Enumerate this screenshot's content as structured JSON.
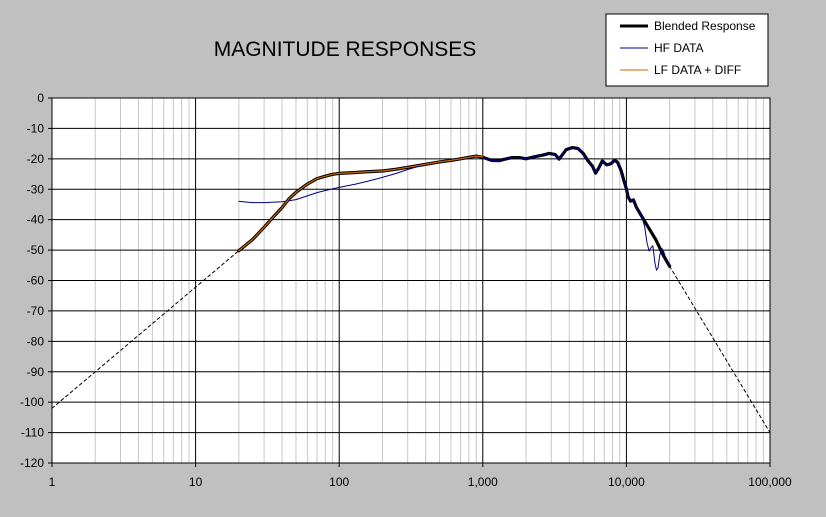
{
  "chart_data": {
    "type": "line",
    "title": "MAGNITUDE RESPONSES",
    "xlabel": "",
    "ylabel": "",
    "x_scale": "log",
    "xlim": [
      1,
      100000
    ],
    "ylim": [
      -120,
      0
    ],
    "grid": true,
    "legend_position": "top-right",
    "x_tick_labels": [
      "1",
      "10",
      "100",
      "1,000",
      "10,000",
      "100,000"
    ],
    "x_tick_values": [
      1,
      10,
      100,
      1000,
      10000,
      100000
    ],
    "y_tick_labels": [
      "0",
      "-10",
      "-20",
      "-30",
      "-40",
      "-50",
      "-60",
      "-70",
      "-80",
      "-90",
      "-100",
      "-110",
      "-120"
    ],
    "y_tick_values": [
      0,
      -10,
      -20,
      -30,
      -40,
      -50,
      -60,
      -70,
      -80,
      -90,
      -100,
      -110,
      -120
    ],
    "series": [
      {
        "name": "Blended Response",
        "color": "#000000",
        "points": [
          [
            20,
            -50.2
          ],
          [
            25,
            -46.5
          ],
          [
            30,
            -42.5
          ],
          [
            35,
            -39
          ],
          [
            40,
            -36
          ],
          [
            45,
            -33
          ],
          [
            50,
            -31
          ],
          [
            60,
            -28.3
          ],
          [
            70,
            -26.5
          ],
          [
            80,
            -25.7
          ],
          [
            90,
            -25.1
          ],
          [
            100,
            -24.8
          ],
          [
            130,
            -24.5
          ],
          [
            150,
            -24.3
          ],
          [
            200,
            -24
          ],
          [
            250,
            -23.4
          ],
          [
            300,
            -22.8
          ],
          [
            400,
            -21.8
          ],
          [
            500,
            -21
          ],
          [
            600,
            -20.5
          ],
          [
            700,
            -20
          ],
          [
            800,
            -19.5
          ],
          [
            900,
            -19.1
          ],
          [
            1000,
            -19.5
          ],
          [
            1150,
            -20.5
          ],
          [
            1300,
            -20.6
          ],
          [
            1400,
            -20.2
          ],
          [
            1600,
            -19.6
          ],
          [
            1800,
            -19.6
          ],
          [
            2000,
            -20
          ],
          [
            2300,
            -19.3
          ],
          [
            2600,
            -18.8
          ],
          [
            2900,
            -18.2
          ],
          [
            3200,
            -18.6
          ],
          [
            3400,
            -20.1
          ],
          [
            3600,
            -18.5
          ],
          [
            3800,
            -17
          ],
          [
            4200,
            -16.3
          ],
          [
            4600,
            -16.6
          ],
          [
            5000,
            -18.2
          ],
          [
            5400,
            -20.6
          ],
          [
            5800,
            -22.4
          ],
          [
            6100,
            -24.7
          ],
          [
            6400,
            -23.1
          ],
          [
            6800,
            -20.7
          ],
          [
            7300,
            -22
          ],
          [
            7800,
            -21.6
          ],
          [
            8300,
            -20.4
          ],
          [
            8700,
            -21.2
          ],
          [
            9200,
            -23.9
          ],
          [
            9600,
            -27.2
          ],
          [
            10000,
            -29.9
          ],
          [
            10300,
            -32.6
          ],
          [
            10700,
            -33.9
          ],
          [
            11200,
            -33.5
          ],
          [
            11700,
            -35.8
          ],
          [
            12500,
            -38.1
          ],
          [
            14000,
            -42
          ],
          [
            16000,
            -46.5
          ],
          [
            18000,
            -51.6
          ],
          [
            20000,
            -55.3
          ]
        ]
      },
      {
        "name": "HF DATA",
        "color": "#000080",
        "points": [
          [
            20,
            -34
          ],
          [
            25,
            -34.4
          ],
          [
            30,
            -34.4
          ],
          [
            40,
            -34.1
          ],
          [
            50,
            -33.4
          ],
          [
            60,
            -32.2
          ],
          [
            70,
            -31.1
          ],
          [
            80,
            -30.4
          ],
          [
            100,
            -29.4
          ],
          [
            130,
            -28.3
          ],
          [
            160,
            -27.3
          ],
          [
            200,
            -26.1
          ],
          [
            250,
            -24.8
          ],
          [
            300,
            -23.5
          ],
          [
            400,
            -21.8
          ],
          [
            500,
            -21
          ],
          [
            600,
            -20.5
          ],
          [
            700,
            -20
          ],
          [
            800,
            -19.6
          ],
          [
            900,
            -19.3
          ],
          [
            1000,
            -19.6
          ],
          [
            1150,
            -20.5
          ],
          [
            1300,
            -20.6
          ],
          [
            1400,
            -20.2
          ],
          [
            1600,
            -19.6
          ],
          [
            1800,
            -19.6
          ],
          [
            2000,
            -20
          ],
          [
            2300,
            -19.3
          ],
          [
            2600,
            -18.8
          ],
          [
            2900,
            -18.2
          ],
          [
            3200,
            -18.6
          ],
          [
            3400,
            -20.1
          ],
          [
            3600,
            -18.5
          ],
          [
            3800,
            -17
          ],
          [
            4200,
            -16.3
          ],
          [
            4600,
            -16.6
          ],
          [
            5000,
            -18.2
          ],
          [
            5400,
            -20.6
          ],
          [
            5800,
            -22.4
          ],
          [
            6100,
            -24.7
          ],
          [
            6400,
            -23.1
          ],
          [
            6800,
            -20.7
          ],
          [
            7300,
            -22
          ],
          [
            7800,
            -21.6
          ],
          [
            8300,
            -20.4
          ],
          [
            8700,
            -21.2
          ],
          [
            9200,
            -23.9
          ],
          [
            9600,
            -27.2
          ],
          [
            10000,
            -29.9
          ],
          [
            10300,
            -32.6
          ],
          [
            10700,
            -33.9
          ],
          [
            11200,
            -33.5
          ],
          [
            11700,
            -35.8
          ],
          [
            12300,
            -37
          ],
          [
            12800,
            -38.8
          ],
          [
            13400,
            -42.4
          ],
          [
            13900,
            -47.4
          ],
          [
            14400,
            -50.3
          ],
          [
            14800,
            -49.3
          ],
          [
            15300,
            -48.6
          ],
          [
            15800,
            -54.2
          ],
          [
            16200,
            -56.6
          ],
          [
            16600,
            -55.9
          ],
          [
            17100,
            -51.4
          ],
          [
            17700,
            -49.5
          ],
          [
            18200,
            -50.5
          ],
          [
            18800,
            -52.7
          ],
          [
            19400,
            -53.9
          ],
          [
            20000,
            -55
          ]
        ]
      },
      {
        "name": "LF DATA + DIFF",
        "color": "#cc6600",
        "points": [
          [
            20,
            -50.2
          ],
          [
            25,
            -46.5
          ],
          [
            30,
            -42.5
          ],
          [
            35,
            -39
          ],
          [
            40,
            -36
          ],
          [
            45,
            -33
          ],
          [
            50,
            -31
          ],
          [
            60,
            -28.3
          ],
          [
            70,
            -26.5
          ],
          [
            80,
            -25.7
          ],
          [
            90,
            -25.1
          ],
          [
            100,
            -24.8
          ],
          [
            130,
            -24.5
          ],
          [
            150,
            -24.3
          ],
          [
            200,
            -24
          ],
          [
            250,
            -23.4
          ],
          [
            300,
            -22.8
          ],
          [
            400,
            -21.8
          ],
          [
            500,
            -21
          ],
          [
            600,
            -20.5
          ],
          [
            700,
            -20
          ],
          [
            800,
            -19.5
          ],
          [
            900,
            -19.1
          ],
          [
            1000,
            -19.3
          ]
        ]
      },
      {
        "name": "",
        "color": "#000000",
        "dashed": true,
        "points": [
          [
            1,
            -102
          ],
          [
            20,
            -50.2
          ]
        ]
      },
      {
        "name": "",
        "color": "#000000",
        "dashed": true,
        "points": [
          [
            20000,
            -55.3
          ],
          [
            100000,
            -110
          ]
        ]
      }
    ]
  }
}
